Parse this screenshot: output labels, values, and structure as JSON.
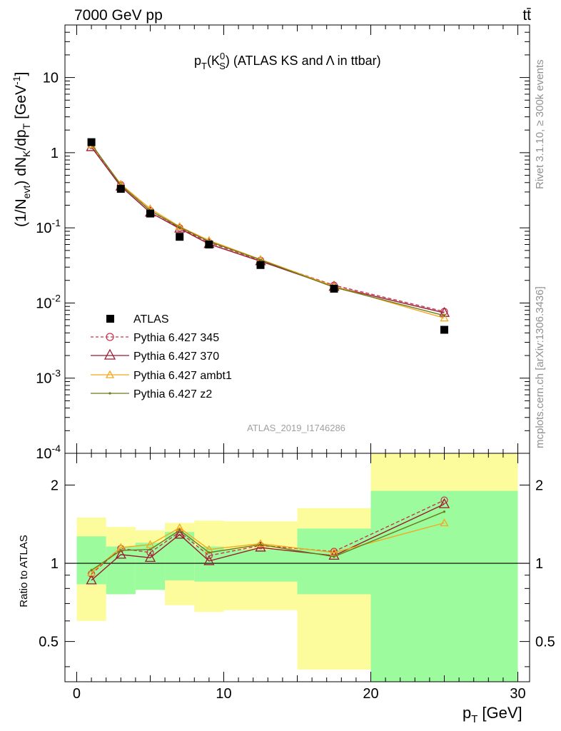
{
  "header": {
    "left": "7000 GeV pp",
    "right": "tt̄"
  },
  "side_labels": {
    "rivet": "Rivet 3.1.10, ≥ 300k events",
    "mcplots": "mcplots.cern.ch [arXiv:1306.3436]"
  },
  "analysis_id": "ATLAS_2019_I1746286",
  "colors": {
    "atlas": "#000000",
    "p345": "#c4384f",
    "p370": "#9b1b2f",
    "ambt1": "#f2a81f",
    "z2": "#6b7a1c",
    "band_inner": "#9cfb9c",
    "band_outer": "#fcfc9c"
  },
  "chart_data": [
    {
      "type": "line",
      "title_main": "p",
      "title_sub": "T",
      "title_paren": "(K",
      "title_sup": "0",
      "title_sub2": "S",
      "title_rest": ") (ATLAS KS and",
      "title_lambda": "Λ",
      "title_end": "in ttbar)",
      "ylabel_parts": {
        "a": "(1/N",
        "a_sub": "evt",
        "b": ") dN",
        "b_sub": "K",
        "c": "/dp",
        "c_sub": "T",
        "d": "[GeV",
        "d_sup": "-1",
        "e": "]"
      },
      "yscale": "log",
      "ylim": [
        0.0001,
        50
      ],
      "xlim": [
        -0.8,
        30.8
      ],
      "y_ticks": [
        {
          "base": "10",
          "exp": "-4",
          "value": 0.0001
        },
        {
          "base": "10",
          "exp": "-3",
          "value": 0.001
        },
        {
          "base": "10",
          "exp": "-2",
          "value": 0.01
        },
        {
          "base": "10",
          "exp": "-1",
          "value": 0.1
        },
        {
          "base": "1",
          "exp": "",
          "value": 1
        },
        {
          "base": "10",
          "exp": "",
          "value": 10
        }
      ],
      "legend_position": "bottom-left",
      "series": [
        {
          "name": "ATLAS",
          "style": "data",
          "x": [
            1,
            3,
            5,
            7,
            9,
            12.5,
            17.5,
            25
          ],
          "y": [
            1.38,
            0.33,
            0.155,
            0.076,
            0.06,
            0.032,
            0.0155,
            0.0044
          ]
        },
        {
          "name": "Pythia 6.427 345",
          "style": "dashed-circle",
          "x": [
            1,
            3,
            5,
            7,
            9,
            12.5,
            17.5,
            25
          ],
          "y": [
            1.25,
            0.375,
            0.17,
            0.1,
            0.064,
            0.037,
            0.0172,
            0.0077
          ]
        },
        {
          "name": "Pythia 6.427 370",
          "style": "solid-triangle",
          "x": [
            1,
            3,
            5,
            7,
            9,
            12.5,
            17.5,
            25
          ],
          "y": [
            1.19,
            0.355,
            0.16,
            0.098,
            0.061,
            0.036,
            0.0165,
            0.0074
          ]
        },
        {
          "name": "Pythia 6.427 ambt1",
          "style": "solid-small-triangle",
          "x": [
            1,
            3,
            5,
            7,
            9,
            12.5,
            17.5,
            25
          ],
          "y": [
            1.27,
            0.38,
            0.18,
            0.104,
            0.068,
            0.038,
            0.0167,
            0.0063
          ]
        },
        {
          "name": "Pythia 6.427 z2",
          "style": "solid-dot",
          "x": [
            1,
            3,
            5,
            7,
            9,
            12.5,
            17.5,
            25
          ],
          "y": [
            1.3,
            0.37,
            0.17,
            0.102,
            0.066,
            0.0375,
            0.0162,
            0.0068
          ]
        }
      ]
    },
    {
      "type": "line",
      "ylabel": "Ratio to ATLAS",
      "xlabel_main": "p",
      "xlabel_sub": "T",
      "xlabel_unit": "[GeV]",
      "yscale": "log",
      "ylim": [
        0.35,
        2.65
      ],
      "xlim": [
        -0.8,
        30.8
      ],
      "x_ticks": [
        "0",
        "10",
        "20",
        "30"
      ],
      "y_ticks": [
        "0.5",
        "1",
        "2"
      ],
      "reference_line": 1,
      "bands": [
        {
          "x0": 0,
          "x1": 2,
          "inner": [
            0.83,
            1.27
          ],
          "outer": [
            0.6,
            1.5
          ]
        },
        {
          "x0": 2,
          "x1": 4,
          "inner": [
            0.76,
            1.16
          ],
          "outer": [
            0.76,
            1.38
          ]
        },
        {
          "x0": 4,
          "x1": 6,
          "inner": [
            0.79,
            1.2
          ],
          "outer": [
            0.79,
            1.34
          ]
        },
        {
          "x0": 6,
          "x1": 8,
          "inner": [
            0.86,
            1.32
          ],
          "outer": [
            0.69,
            1.43
          ]
        },
        {
          "x0": 8,
          "x1": 10,
          "inner": [
            0.85,
            1.16
          ],
          "outer": [
            0.65,
            1.46
          ]
        },
        {
          "x0": 10,
          "x1": 15,
          "inner": [
            0.85,
            1.13
          ],
          "outer": [
            0.66,
            1.45
          ]
        },
        {
          "x0": 15,
          "x1": 20,
          "inner": [
            0.76,
            1.36
          ],
          "outer": [
            0.39,
            1.63
          ]
        },
        {
          "x0": 20,
          "x1": 30,
          "inner": [
            0.35,
            1.9
          ],
          "outer": [
            0.35,
            2.65
          ]
        }
      ],
      "series": [
        {
          "name": "Pythia 6.427 345",
          "x": [
            1,
            3,
            5,
            7,
            9,
            12.5,
            17.5,
            25
          ],
          "y": [
            0.91,
            1.14,
            1.1,
            1.32,
            1.07,
            1.17,
            1.11,
            1.75
          ]
        },
        {
          "name": "Pythia 6.427 370",
          "x": [
            1,
            3,
            5,
            7,
            9,
            12.5,
            17.5,
            25
          ],
          "y": [
            0.86,
            1.08,
            1.05,
            1.29,
            1.02,
            1.15,
            1.07,
            1.69
          ]
        },
        {
          "name": "Pythia 6.427 ambt1",
          "x": [
            1,
            3,
            5,
            7,
            9,
            12.5,
            17.5,
            25
          ],
          "y": [
            0.92,
            1.15,
            1.18,
            1.37,
            1.13,
            1.19,
            1.1,
            1.43
          ]
        },
        {
          "name": "Pythia 6.427 z2",
          "x": [
            1,
            3,
            5,
            7,
            9,
            12.5,
            17.5,
            25
          ],
          "y": [
            0.94,
            1.12,
            1.13,
            1.34,
            1.1,
            1.18,
            1.06,
            1.58
          ]
        }
      ]
    }
  ]
}
